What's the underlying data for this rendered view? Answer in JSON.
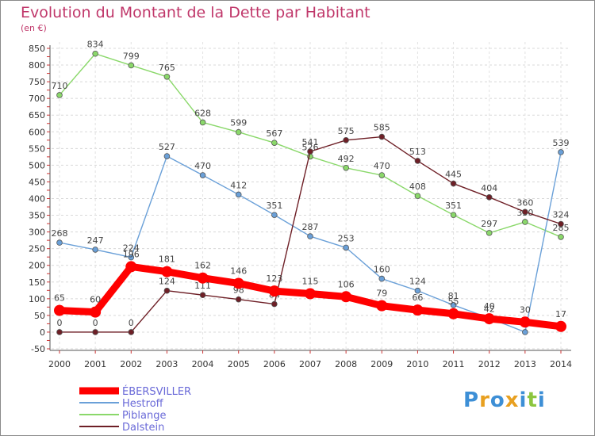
{
  "title": "Evolution du Montant de la Dette par Habitant",
  "unit": "(en €)",
  "logo": "Proxiti",
  "chart_data": {
    "type": "line",
    "title": "Evolution du Montant de la Dette par Habitant",
    "ylabel": "(en €)",
    "ylim": [
      -50,
      850
    ],
    "yticks": [
      -50,
      0,
      50,
      100,
      150,
      200,
      250,
      300,
      350,
      400,
      450,
      500,
      550,
      600,
      650,
      700,
      750,
      800,
      850
    ],
    "x": [
      "2000",
      "2001",
      "2002",
      "2003",
      "2004",
      "2005",
      "2006",
      "2007",
      "2008",
      "2009",
      "2010",
      "2011",
      "2012",
      "2013",
      "2014"
    ],
    "legend_position": "bottom-left",
    "series": [
      {
        "name": "Piblange",
        "color": "#8ad86a",
        "values": [
          710,
          834,
          799,
          765,
          628,
          599,
          567,
          526,
          492,
          470,
          408,
          351,
          297,
          330,
          285
        ]
      },
      {
        "name": "Hestroff",
        "color": "#6aa0d8",
        "values": [
          268,
          247,
          224,
          527,
          470,
          412,
          351,
          287,
          253,
          160,
          124,
          81,
          42,
          0,
          539
        ]
      },
      {
        "name": "Dalstein",
        "color": "#6e1f26",
        "values": [
          0,
          0,
          0,
          124,
          111,
          98,
          84,
          541,
          575,
          585,
          513,
          445,
          404,
          360,
          324
        ]
      },
      {
        "name": "ÉBERSVILLER",
        "color": "#ff0000",
        "values": [
          65,
          60,
          196,
          181,
          162,
          146,
          123,
          115,
          106,
          79,
          66,
          55,
          40,
          30,
          17
        ]
      }
    ]
  }
}
